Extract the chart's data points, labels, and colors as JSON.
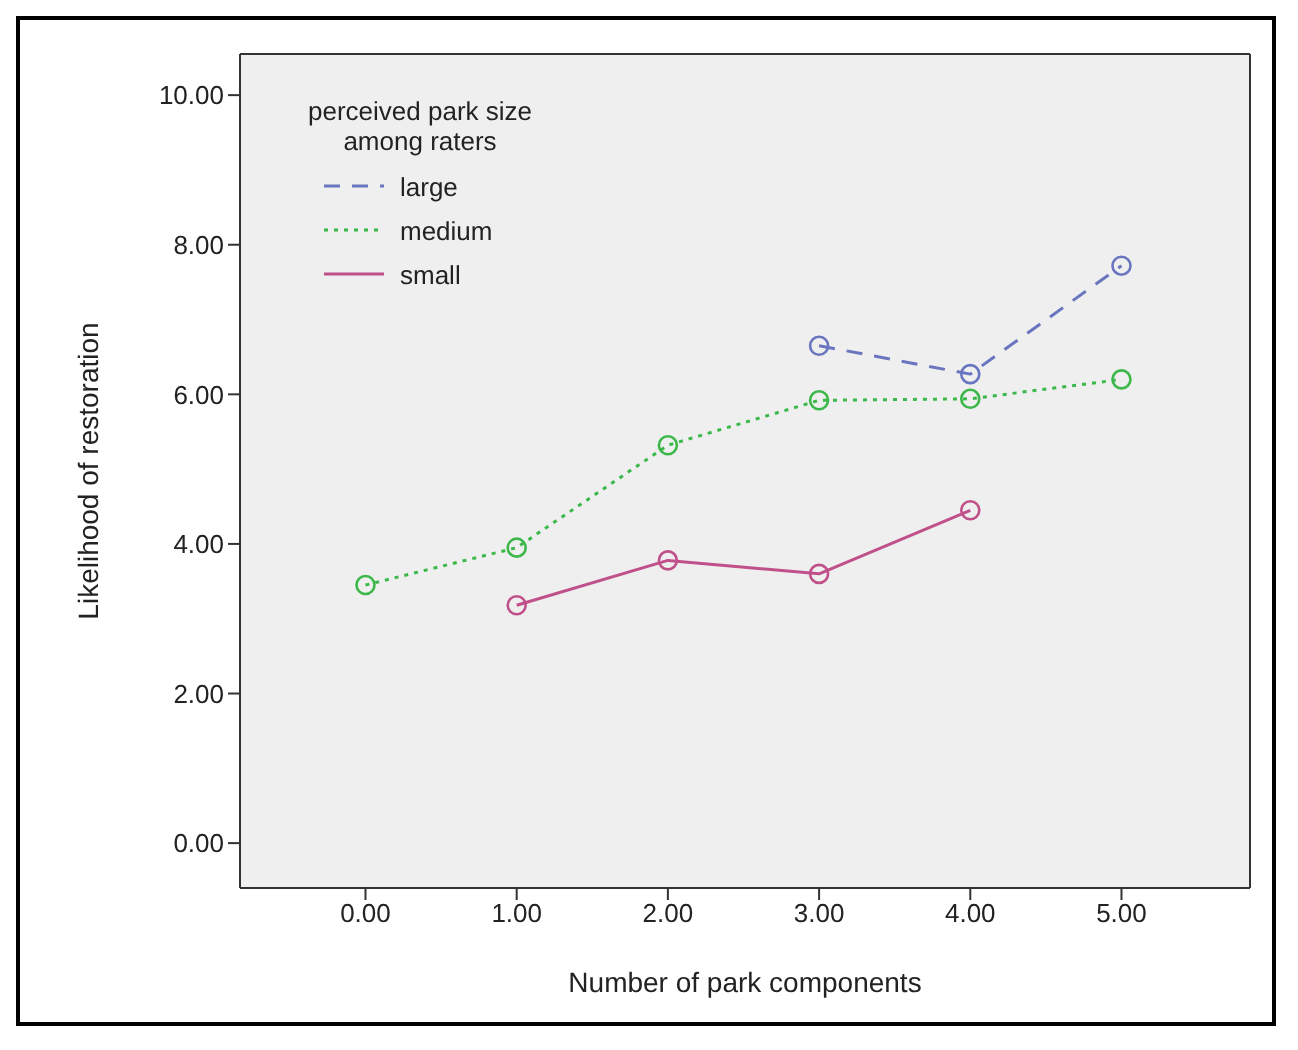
{
  "chart_data": {
    "type": "line",
    "xlabel": "Number of park components",
    "ylabel": "Likelihood of restoration",
    "legend_title": "perceived park size\namong raters",
    "legend": "top left",
    "grid": false,
    "marker": "circle",
    "x": [
      0,
      1,
      2,
      3,
      4,
      5
    ],
    "xlim": [
      -0.83,
      5.85
    ],
    "ylim": [
      -0.6,
      10.55
    ],
    "xticks": [
      {
        "value": 0,
        "label": "0.00"
      },
      {
        "value": 1,
        "label": "1.00"
      },
      {
        "value": 2,
        "label": "2.00"
      },
      {
        "value": 3,
        "label": "3.00"
      },
      {
        "value": 4,
        "label": "4.00"
      },
      {
        "value": 5,
        "label": "5.00"
      }
    ],
    "yticks": [
      {
        "value": 0,
        "label": "0.00"
      },
      {
        "value": 2,
        "label": "2.00"
      },
      {
        "value": 4,
        "label": "4.00"
      },
      {
        "value": 6,
        "label": "6.00"
      },
      {
        "value": 8,
        "label": "8.00"
      },
      {
        "value": 10,
        "label": "10.00"
      }
    ],
    "series": [
      {
        "name": "large",
        "color": "#6a75c0",
        "line_style": "dashed",
        "values": [
          null,
          null,
          null,
          6.65,
          6.27,
          7.72
        ]
      },
      {
        "name": "medium",
        "color": "#3cb84a",
        "line_style": "dotted",
        "values": [
          3.45,
          3.95,
          5.32,
          5.92,
          5.94,
          6.2
        ]
      },
      {
        "name": "small",
        "color": "#c0508a",
        "line_style": "solid",
        "values": [
          null,
          3.18,
          3.78,
          3.6,
          4.45,
          null
        ]
      }
    ]
  }
}
